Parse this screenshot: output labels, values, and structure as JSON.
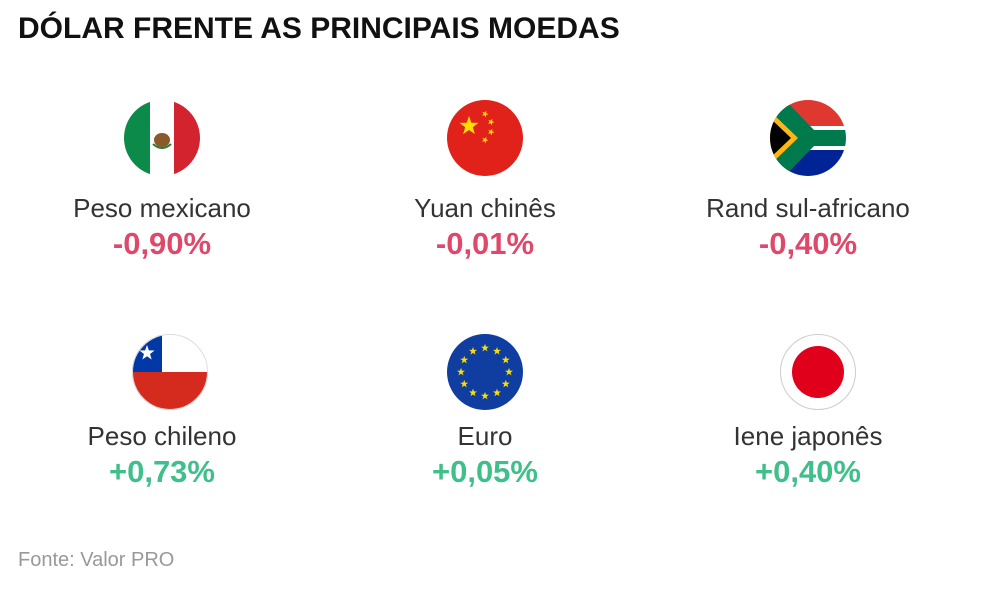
{
  "header": {
    "title": "DÓLAR FRENTE AS PRINCIPAIS MOEDAS"
  },
  "items": [
    {
      "name": "Peso mexicano",
      "change": "-0,90%",
      "color": "#e0486a"
    },
    {
      "name": "Yuan chinês",
      "change": "-0,01%",
      "color": "#e0486a"
    },
    {
      "name": "Rand sul-africano",
      "change": "-0,40%",
      "color": "#e0486a"
    },
    {
      "name": "Peso chileno",
      "change": "+0,73%",
      "color": "#3fbf8a"
    },
    {
      "name": "Euro",
      "change": "+0,05%",
      "color": "#3fbf8a"
    },
    {
      "name": "Iene japonês",
      "change": "+0,40%",
      "color": "#3fbf8a"
    }
  ],
  "footer": {
    "source": "Fonte: Valor PRO"
  }
}
